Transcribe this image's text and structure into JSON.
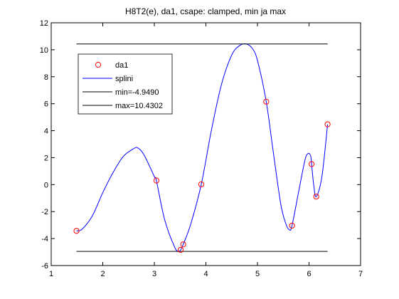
{
  "chart_data": {
    "type": "line",
    "title": "H8T2(e), da1, csape: clamped, min ja max",
    "xlim": [
      1,
      7
    ],
    "ylim": [
      -6,
      12
    ],
    "xticks": [
      1,
      2,
      3,
      4,
      5,
      6,
      7
    ],
    "yticks": [
      -6,
      -4,
      -2,
      0,
      2,
      4,
      6,
      8,
      10,
      12
    ],
    "grid": false,
    "legend_position": "top-left",
    "colors": {
      "points": "#ff0000",
      "spline": "#0000ff",
      "lines": "#000000"
    },
    "series": [
      {
        "name": "da1",
        "style": "markers",
        "marker": "circle",
        "color": "#ff0000",
        "x": [
          1.49,
          3.04,
          3.51,
          3.56,
          3.91,
          5.17,
          5.67,
          6.05,
          6.14,
          6.36
        ],
        "y": [
          -3.43,
          0.3,
          -4.84,
          -4.43,
          0.02,
          6.15,
          -3.04,
          1.52,
          -0.89,
          4.47
        ]
      },
      {
        "name": "splini",
        "style": "line",
        "color": "#0000ff",
        "x": [
          1.49,
          1.6,
          1.8,
          2.0,
          2.2,
          2.4,
          2.6,
          2.68,
          2.8,
          3.0,
          3.04,
          3.2,
          3.4,
          3.48,
          3.51,
          3.56,
          3.7,
          3.91,
          4.1,
          4.3,
          4.5,
          4.65,
          4.78,
          4.9,
          5.0,
          5.17,
          5.3,
          5.45,
          5.55,
          5.62,
          5.67,
          5.8,
          5.92,
          5.98,
          6.03,
          6.05,
          6.09,
          6.14,
          6.25,
          6.36
        ],
        "y": [
          -3.43,
          -3.3,
          -2.3,
          -0.6,
          0.9,
          2.1,
          2.67,
          2.72,
          2.2,
          0.6,
          0.3,
          -2.6,
          -4.68,
          -4.93,
          -4.84,
          -4.43,
          -3.0,
          0.02,
          3.9,
          7.4,
          9.6,
          10.3,
          10.43,
          10.1,
          9.2,
          6.15,
          2.6,
          -1.4,
          -2.9,
          -3.35,
          -3.04,
          -0.5,
          1.8,
          2.3,
          2.15,
          1.52,
          0.0,
          -0.89,
          0.6,
          4.47
        ]
      },
      {
        "name": "min=-4.9490",
        "style": "line",
        "color": "#000000",
        "x": [
          1.49,
          6.36
        ],
        "y": [
          -4.949,
          -4.949
        ]
      },
      {
        "name": "max=10.4302",
        "style": "line",
        "color": "#000000",
        "x": [
          1.49,
          6.36
        ],
        "y": [
          10.4302,
          10.4302
        ]
      }
    ]
  }
}
